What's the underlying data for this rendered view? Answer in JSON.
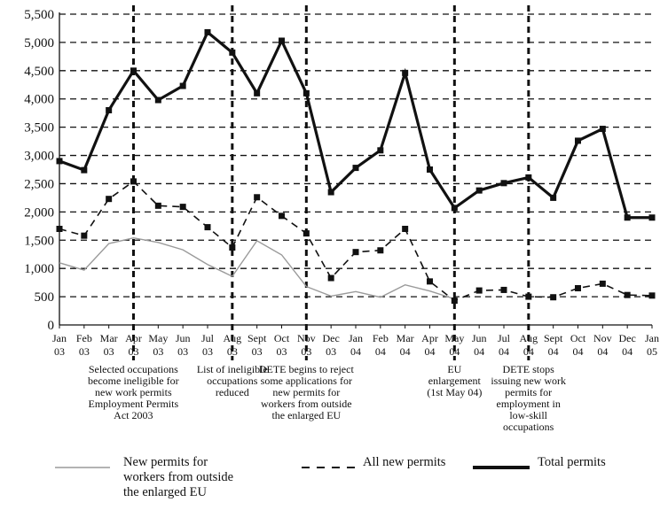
{
  "chart_data": {
    "type": "line",
    "categories": [
      [
        "Jan",
        "03"
      ],
      [
        "Feb",
        "03"
      ],
      [
        "Mar",
        "03"
      ],
      [
        "Apr",
        "03"
      ],
      [
        "May",
        "03"
      ],
      [
        "Jun",
        "03"
      ],
      [
        "Jul",
        "03"
      ],
      [
        "Aug",
        "03"
      ],
      [
        "Sept",
        "03"
      ],
      [
        "Oct",
        "03"
      ],
      [
        "Nov",
        "03"
      ],
      [
        "Dec",
        "03"
      ],
      [
        "Jan",
        "04"
      ],
      [
        "Feb",
        "04"
      ],
      [
        "Mar",
        "04"
      ],
      [
        "Apr",
        "04"
      ],
      [
        "May",
        "04"
      ],
      [
        "Jun",
        "04"
      ],
      [
        "Jul",
        "04"
      ],
      [
        "Aug",
        "04"
      ],
      [
        "Sept",
        "04"
      ],
      [
        "Oct",
        "04"
      ],
      [
        "Nov",
        "04"
      ],
      [
        "Dec",
        "04"
      ],
      [
        "Jan",
        "05"
      ]
    ],
    "ylim": [
      0,
      5500
    ],
    "yticks": [
      "0",
      "500",
      "1,000",
      "1,500",
      "2,000",
      "2,500",
      "3,000",
      "3,500",
      "4,000",
      "4,500",
      "5,000",
      "5,500"
    ],
    "ytick_values": [
      0,
      500,
      1000,
      1500,
      2000,
      2500,
      3000,
      3500,
      4000,
      4500,
      5000,
      5500
    ],
    "grid": true,
    "series": [
      {
        "name": "New permits for workers from outside the enlarged EU",
        "style": "solid-thin",
        "color": "#9a9a9a",
        "values": [
          1100,
          970,
          1440,
          1540,
          1460,
          1330,
          1070,
          860,
          1490,
          1240,
          680,
          510,
          590,
          490,
          710,
          600,
          460,
          null,
          null,
          null,
          null,
          null,
          null,
          null,
          null
        ]
      },
      {
        "name": "All new permits",
        "style": "dashed",
        "color": "#111111",
        "values": [
          1700,
          1580,
          2230,
          2540,
          2110,
          2090,
          1730,
          1370,
          2260,
          1930,
          1620,
          830,
          1290,
          1320,
          1700,
          770,
          430,
          610,
          620,
          500,
          490,
          650,
          730,
          530,
          520
        ]
      },
      {
        "name": "Total permits",
        "style": "solid-thick",
        "color": "#111111",
        "values": [
          2900,
          2740,
          3800,
          4500,
          3980,
          4230,
          5180,
          4820,
          4100,
          5030,
          4100,
          2350,
          2780,
          3090,
          4460,
          2750,
          2070,
          2380,
          2510,
          2610,
          2250,
          3260,
          3470,
          1900,
          1900
        ]
      }
    ],
    "event_lines": [
      {
        "between": [
          3,
          3
        ],
        "label": "Selected occupations\nbecome ineligible for\nnew work permits\nEmployment Permits\nAct 2003"
      },
      {
        "between": [
          7,
          7
        ],
        "label": "List of ineligible\noccupations\nreduced"
      },
      {
        "between": [
          10,
          10
        ],
        "label": "DETE begins to reject\nsome applications for\nnew permits for\nworkers from outside\nthe enlarged EU"
      },
      {
        "between": [
          16,
          16
        ],
        "label": "EU\nenlargement\n(1st May 04)"
      },
      {
        "between": [
          19,
          19
        ],
        "label": "DETE stops\nissuing new work\npermits for\nemployment in\nlow-skill\noccupations"
      }
    ]
  },
  "legend": {
    "outside": "New permits for\nworkers from outside\nthe enlarged EU",
    "all": "All new permits",
    "total": "Total permits"
  }
}
